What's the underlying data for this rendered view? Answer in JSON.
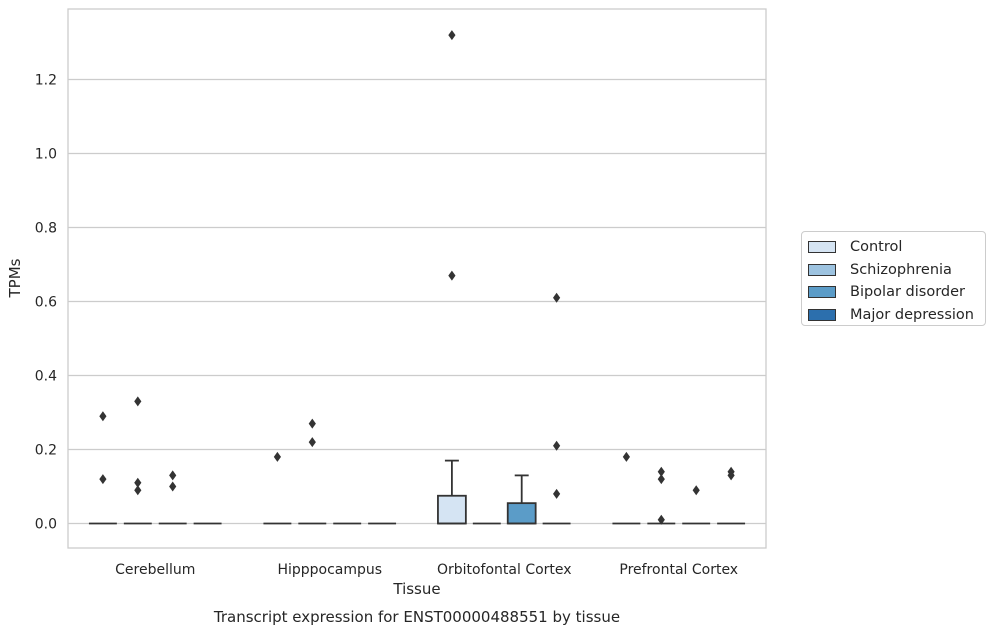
{
  "chart_data": {
    "type": "box",
    "title": "Transcript expression for ENST00000488551 by tissue",
    "xlabel": "Tissue",
    "ylabel": "TPMs",
    "ylim": [
      -0.065,
      1.39
    ],
    "yticks": [
      "0.0",
      "0.2",
      "0.4",
      "0.6",
      "0.8",
      "1.0",
      "1.2"
    ],
    "categories": [
      "Cerebellum",
      "Hipppocampus",
      "Orbitofontal Cortex",
      "Prefrontal Cortex"
    ],
    "grid": true,
    "legend_position": "right",
    "series": [
      {
        "name": "Control",
        "color": "#d5e4f3",
        "boxes": [
          {
            "q1": 0,
            "median": 0,
            "q3": 0,
            "whisker_low": 0,
            "whisker_high": 0,
            "outliers": [
              0.29,
              0.12
            ]
          },
          {
            "q1": 0,
            "median": 0,
            "q3": 0,
            "whisker_low": 0,
            "whisker_high": 0,
            "outliers": [
              0.18
            ]
          },
          {
            "q1": 0,
            "median": 0,
            "q3": 0.075,
            "whisker_low": 0,
            "whisker_high": 0.17,
            "outliers": [
              1.32,
              0.67
            ]
          },
          {
            "q1": 0,
            "median": 0,
            "q3": 0,
            "whisker_low": 0,
            "whisker_high": 0,
            "outliers": [
              0.18
            ]
          }
        ]
      },
      {
        "name": "Schizophrenia",
        "color": "#9dc3e0",
        "boxes": [
          {
            "q1": 0,
            "median": 0,
            "q3": 0,
            "whisker_low": 0,
            "whisker_high": 0,
            "outliers": [
              0.33,
              0.11,
              0.09
            ]
          },
          {
            "q1": 0,
            "median": 0,
            "q3": 0,
            "whisker_low": 0,
            "whisker_high": 0,
            "outliers": [
              0.27,
              0.22
            ]
          },
          {
            "q1": 0,
            "median": 0,
            "q3": 0,
            "whisker_low": 0,
            "whisker_high": 0,
            "outliers": []
          },
          {
            "q1": 0,
            "median": 0,
            "q3": 0,
            "whisker_low": 0,
            "whisker_high": 0,
            "outliers": [
              0.14,
              0.12,
              0.01
            ]
          }
        ]
      },
      {
        "name": "Bipolar disorder",
        "color": "#5b9cc8",
        "boxes": [
          {
            "q1": 0,
            "median": 0,
            "q3": 0,
            "whisker_low": 0,
            "whisker_high": 0,
            "outliers": [
              0.13,
              0.1
            ]
          },
          {
            "q1": 0,
            "median": 0,
            "q3": 0,
            "whisker_low": 0,
            "whisker_high": 0,
            "outliers": []
          },
          {
            "q1": 0,
            "median": 0,
            "q3": 0.055,
            "whisker_low": 0,
            "whisker_high": 0.13,
            "outliers": []
          },
          {
            "q1": 0,
            "median": 0,
            "q3": 0,
            "whisker_low": 0,
            "whisker_high": 0,
            "outliers": [
              0.09
            ]
          }
        ]
      },
      {
        "name": "Major depression",
        "color": "#2c6fad",
        "boxes": [
          {
            "q1": 0,
            "median": 0,
            "q3": 0,
            "whisker_low": 0,
            "whisker_high": 0,
            "outliers": []
          },
          {
            "q1": 0,
            "median": 0,
            "q3": 0,
            "whisker_low": 0,
            "whisker_high": 0,
            "outliers": []
          },
          {
            "q1": 0,
            "median": 0,
            "q3": 0,
            "whisker_low": 0,
            "whisker_high": 0,
            "outliers": [
              0.61,
              0.21,
              0.08
            ]
          },
          {
            "q1": 0,
            "median": 0,
            "q3": 0,
            "whisker_low": 0,
            "whisker_high": 0,
            "outliers": [
              0.14,
              0.13
            ]
          }
        ]
      }
    ]
  }
}
